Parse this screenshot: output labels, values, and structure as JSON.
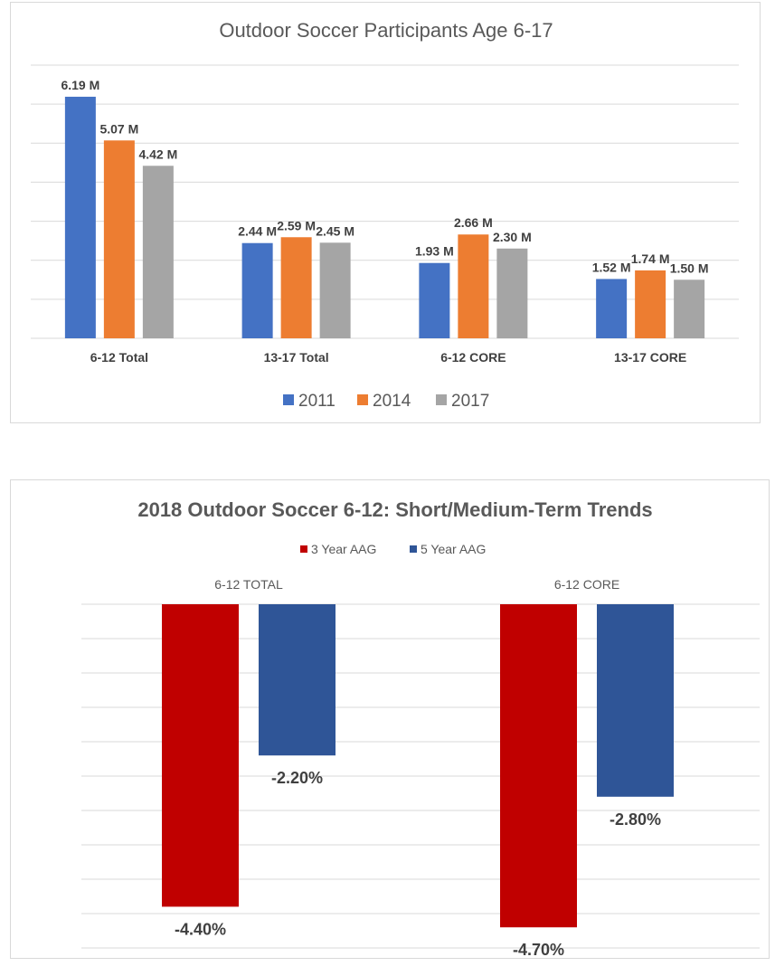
{
  "chart_data": [
    {
      "type": "bar",
      "title": "Outdoor Soccer Participants Age 6-17",
      "categories": [
        "6-12 Total",
        "13-17 Total",
        "6-12 CORE",
        "13-17 CORE"
      ],
      "series": [
        {
          "name": "2011",
          "color": "#4472c4",
          "values": [
            6.19,
            2.44,
            1.93,
            1.52
          ],
          "labels": [
            "6.19 M",
            "2.44 M",
            "1.93 M",
            "1.52 M"
          ]
        },
        {
          "name": "2014",
          "color": "#ed7d31",
          "values": [
            5.07,
            2.59,
            2.66,
            1.74
          ],
          "labels": [
            "5.07 M",
            "2.59 M",
            "2.66 M",
            "1.74 M"
          ]
        },
        {
          "name": "2017",
          "color": "#a5a5a5",
          "values": [
            4.42,
            2.45,
            2.3,
            1.5
          ],
          "labels": [
            "4.42 M",
            "2.45 M",
            "2.30 M",
            "1.50 M"
          ]
        }
      ],
      "unit": "M",
      "ylim": [
        0,
        7
      ],
      "grid": true,
      "legend": "bottom"
    },
    {
      "type": "bar",
      "title": "2018 Outdoor Soccer 6-12: Short/Medium-Term Trends",
      "categories": [
        "6-12 TOTAL",
        "6-12 CORE"
      ],
      "series": [
        {
          "name": "3 Year AAG",
          "color": "#c00000",
          "values": [
            -4.4,
            -4.7
          ],
          "labels": [
            "-4.40%",
            "-4.70%"
          ]
        },
        {
          "name": "5 Year AAG",
          "color": "#2f5597",
          "values": [
            -2.2,
            -2.8
          ],
          "labels": [
            "-2.20%",
            "-2.80%"
          ]
        }
      ],
      "unit": "%",
      "ylim": [
        -5,
        0
      ],
      "grid": true,
      "legend": "top"
    }
  ]
}
